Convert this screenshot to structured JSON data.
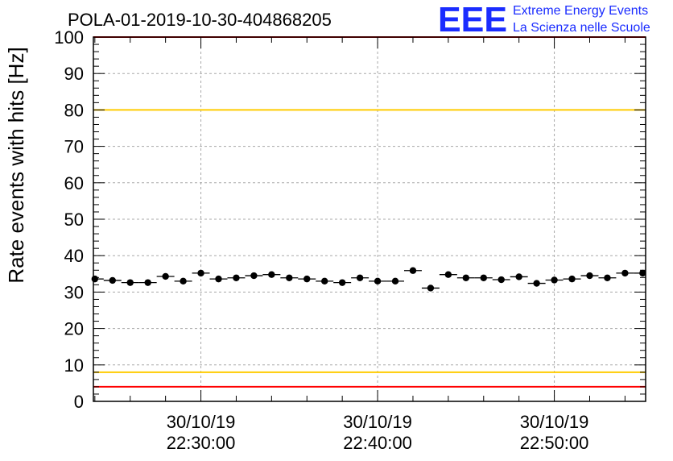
{
  "header": {
    "title": "POLA-01-2019-10-30-404868205",
    "logo": {
      "mark": "EEE",
      "line1": "Extreme Energy Events",
      "line2": "La Scienza nelle Scuole",
      "color": "#1a2cff"
    }
  },
  "chart_data": {
    "type": "scatter",
    "title": "POLA-01-2019-10-30-404868205",
    "xlabel": "",
    "ylabel": "Rate events with hits [Hz]",
    "xlim": [
      "2019-10-30 22:23:55",
      "2019-10-30 22:55:10"
    ],
    "ylim": [
      0,
      100
    ],
    "grid": true,
    "y_ticks": [
      "0",
      "10",
      "20",
      "30",
      "40",
      "50",
      "60",
      "70",
      "80",
      "90",
      "100"
    ],
    "x_ticks": [
      {
        "x": "2019-10-30 22:30:00",
        "date": "30/10/19",
        "time": "22:30:00"
      },
      {
        "x": "2019-10-30 22:40:00",
        "date": "30/10/19",
        "time": "22:40:00"
      },
      {
        "x": "2019-10-30 22:50:00",
        "date": "30/10/19",
        "time": "22:50:00"
      }
    ],
    "reference_lines": [
      {
        "y": 80,
        "color": "#ffcc00"
      },
      {
        "y": 8,
        "color": "#ffcc00"
      },
      {
        "y": 100,
        "color": "#ff0000"
      },
      {
        "y": 4,
        "color": "#ff0000"
      }
    ],
    "series": [
      {
        "color": "#000000",
        "bin_width_minutes": 1,
        "x": [
          "2019-10-30 22:24:00",
          "2019-10-30 22:25:00",
          "2019-10-30 22:26:00",
          "2019-10-30 22:27:00",
          "2019-10-30 22:28:00",
          "2019-10-30 22:29:00",
          "2019-10-30 22:30:00",
          "2019-10-30 22:31:00",
          "2019-10-30 22:32:00",
          "2019-10-30 22:33:00",
          "2019-10-30 22:34:00",
          "2019-10-30 22:35:00",
          "2019-10-30 22:36:00",
          "2019-10-30 22:37:00",
          "2019-10-30 22:38:00",
          "2019-10-30 22:39:00",
          "2019-10-30 22:40:00",
          "2019-10-30 22:41:00",
          "2019-10-30 22:42:00",
          "2019-10-30 22:43:00",
          "2019-10-30 22:44:00",
          "2019-10-30 22:45:00",
          "2019-10-30 22:46:00",
          "2019-10-30 22:47:00",
          "2019-10-30 22:48:00",
          "2019-10-30 22:49:00",
          "2019-10-30 22:50:00",
          "2019-10-30 22:51:00",
          "2019-10-30 22:52:00",
          "2019-10-30 22:53:00",
          "2019-10-30 22:54:00",
          "2019-10-30 22:55:00"
        ],
        "y": [
          33.6,
          33.2,
          32.6,
          32.6,
          34.3,
          33.0,
          35.2,
          33.6,
          33.9,
          34.5,
          34.8,
          33.9,
          33.6,
          33.0,
          32.6,
          33.9,
          33.0,
          33.0,
          35.9,
          31.1,
          34.8,
          33.9,
          33.9,
          33.4,
          34.2,
          32.4,
          33.3,
          33.6,
          34.5,
          33.9,
          35.2,
          35.2
        ]
      }
    ]
  }
}
